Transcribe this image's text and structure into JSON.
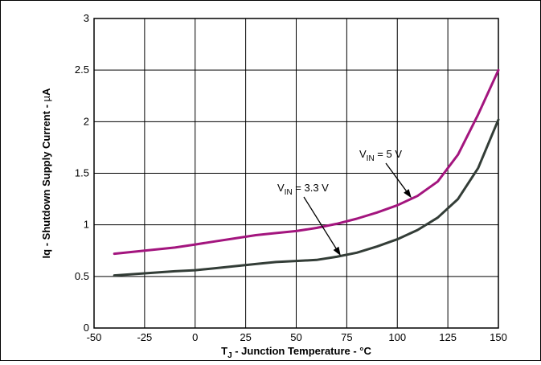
{
  "chart_data": {
    "type": "line",
    "xlabel": "T_J - Junction Temperature - °C",
    "ylabel": "Iq - Shutdown Supply Current - µA",
    "xlim": [
      -50,
      150
    ],
    "ylim": [
      0,
      3
    ],
    "xticks": [
      -50,
      -25,
      0,
      25,
      50,
      75,
      100,
      125,
      150
    ],
    "yticks": [
      0,
      0.5,
      1,
      1.5,
      2,
      2.5,
      3
    ],
    "xtick_labels": [
      "-50",
      "-25",
      "0",
      "25",
      "50",
      "75",
      "100",
      "125",
      "150"
    ],
    "ytick_labels": [
      "0",
      "0.5",
      "1",
      "1.5",
      "2",
      "2.5",
      "3"
    ],
    "grid": true,
    "series": [
      {
        "name": "VIN = 5 V",
        "color": "#a3157e",
        "x": [
          -40,
          -25,
          -10,
          0,
          10,
          20,
          30,
          40,
          50,
          60,
          70,
          80,
          90,
          100,
          110,
          120,
          130,
          140,
          150
        ],
        "y": [
          0.72,
          0.75,
          0.78,
          0.81,
          0.84,
          0.87,
          0.9,
          0.92,
          0.94,
          0.97,
          1.01,
          1.06,
          1.12,
          1.19,
          1.28,
          1.42,
          1.68,
          2.07,
          2.5
        ]
      },
      {
        "name": "VIN = 3.3 V",
        "color": "#333d37",
        "x": [
          -40,
          -25,
          -10,
          0,
          10,
          20,
          30,
          40,
          50,
          60,
          70,
          80,
          90,
          100,
          110,
          120,
          130,
          140,
          150
        ],
        "y": [
          0.51,
          0.53,
          0.55,
          0.56,
          0.58,
          0.6,
          0.62,
          0.64,
          0.65,
          0.66,
          0.69,
          0.73,
          0.79,
          0.86,
          0.95,
          1.07,
          1.25,
          1.55,
          2.02
        ]
      }
    ],
    "annotations": [
      {
        "text_main": "V",
        "text_sub": "IN",
        "text_rest": " = 5 V",
        "series": "VIN = 5 V",
        "arrow_to": [
          107,
          1.26
        ]
      },
      {
        "text_main": "V",
        "text_sub": "IN",
        "text_rest": " = 3.3 V",
        "series": "VIN = 3.3 V",
        "arrow_to": [
          72,
          0.7
        ]
      }
    ],
    "xlabel_parts": {
      "main": "T",
      "sub": "J",
      "rest": " - Junction Temperature - °C"
    },
    "ylabel_parts": {
      "pre": "Iq - Shutdown Supply Current - ",
      "mu": "µ",
      "post": "A"
    }
  }
}
